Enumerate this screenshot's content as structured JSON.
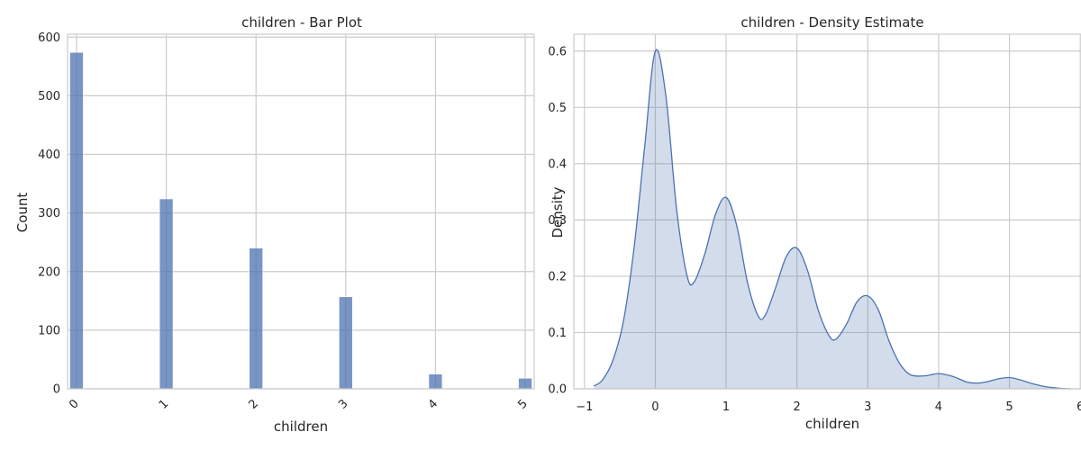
{
  "chart_data": [
    {
      "type": "bar",
      "title": "children - Bar Plot",
      "xlabel": "children",
      "ylabel": "Count",
      "categories": [
        "0",
        "1",
        "2",
        "3",
        "4",
        "5"
      ],
      "values": [
        574,
        324,
        240,
        157,
        25,
        18
      ],
      "x_ticks": [
        "0",
        "1",
        "2",
        "3",
        "4",
        "5"
      ],
      "x_tick_rotation_deg": 45,
      "xlim": [
        -0.1,
        5.1
      ],
      "ylim": [
        0,
        605
      ],
      "y_ticks": [
        0,
        100,
        200,
        300,
        400,
        500,
        600
      ],
      "bar_color": "#4c72b0",
      "grid": true
    },
    {
      "type": "area",
      "title": "children - Density Estimate",
      "xlabel": "children",
      "ylabel": "Density",
      "x": [
        -0.87,
        -0.75,
        -0.6,
        -0.45,
        -0.3,
        -0.15,
        0.0,
        0.15,
        0.3,
        0.45,
        0.55,
        0.7,
        0.85,
        1.0,
        1.15,
        1.3,
        1.45,
        1.55,
        1.7,
        1.85,
        2.0,
        2.15,
        2.3,
        2.45,
        2.55,
        2.7,
        2.85,
        3.0,
        3.15,
        3.3,
        3.45,
        3.6,
        3.8,
        4.0,
        4.2,
        4.4,
        4.55,
        4.7,
        4.85,
        5.0,
        5.15,
        5.3,
        5.5,
        5.7,
        5.87
      ],
      "y": [
        0.005,
        0.015,
        0.05,
        0.12,
        0.25,
        0.43,
        0.6,
        0.52,
        0.32,
        0.2,
        0.19,
        0.24,
        0.31,
        0.34,
        0.29,
        0.19,
        0.13,
        0.13,
        0.18,
        0.235,
        0.25,
        0.21,
        0.14,
        0.095,
        0.088,
        0.115,
        0.155,
        0.165,
        0.14,
        0.085,
        0.045,
        0.025,
        0.023,
        0.027,
        0.022,
        0.012,
        0.01,
        0.013,
        0.018,
        0.02,
        0.016,
        0.01,
        0.004,
        0.001,
        0.0
      ],
      "x_ticks": [
        -1,
        0,
        1,
        2,
        3,
        4,
        5,
        6
      ],
      "xlim": [
        -1.15,
        6.15
      ],
      "ylim": [
        0,
        0.63
      ],
      "y_ticks": [
        0.0,
        0.1,
        0.2,
        0.3,
        0.4,
        0.5,
        0.6
      ],
      "line_color": "#4c72b0",
      "fill_color": "#4c72b0",
      "fill_opacity": 0.25,
      "grid": true
    }
  ]
}
